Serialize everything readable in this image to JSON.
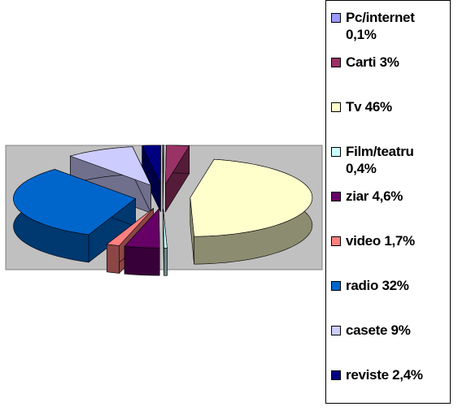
{
  "chart_data": {
    "type": "pie",
    "categories": [
      "Pc/internet 0,1%",
      "Carti 3%",
      "Tv 46%",
      "Film/teatru 0,4%",
      "ziar 4,6%",
      "video 1,7%",
      "radio 32%",
      "casete 9%",
      "reviste 2,4%"
    ],
    "values": [
      0.1,
      3,
      46,
      0.4,
      4.6,
      1.7,
      32,
      9,
      2.4
    ],
    "colors": [
      "#9999ff",
      "#993366",
      "#ffffcc",
      "#ccffff",
      "#660066",
      "#ff8080",
      "#0066cc",
      "#ccccff",
      "#000080"
    ],
    "legend": "right"
  }
}
